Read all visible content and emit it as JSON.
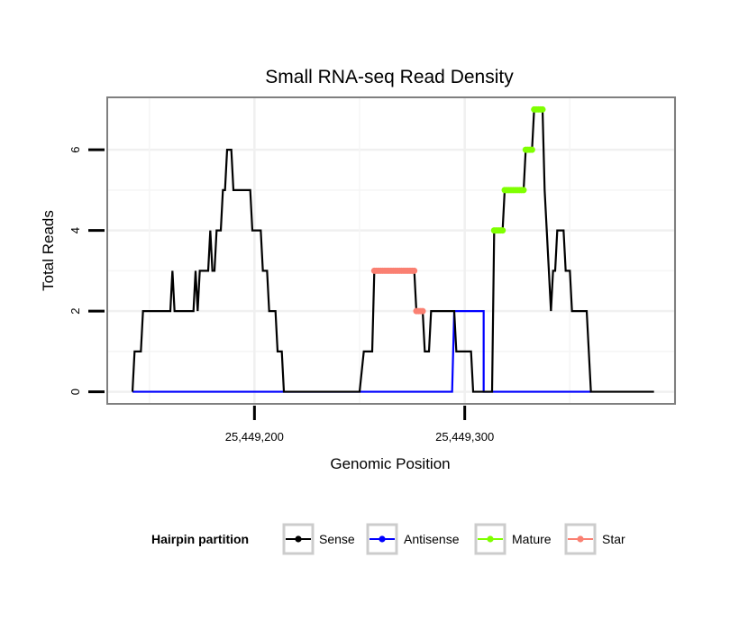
{
  "chart_data": {
    "type": "line",
    "title": "Small RNA-seq Read Density",
    "xlabel": "Genomic Position",
    "ylabel": "Total Reads",
    "xlim": [
      25449130,
      25449400
    ],
    "ylim": [
      -0.3,
      7.3
    ],
    "x_ticks": [
      {
        "value": 25449200,
        "label": "25,449,200"
      },
      {
        "value": 25449300,
        "label": "25,449,300"
      }
    ],
    "y_ticks": [
      {
        "value": 0,
        "label": "0"
      },
      {
        "value": 2,
        "label": "2"
      },
      {
        "value": 4,
        "label": "4"
      },
      {
        "value": 6,
        "label": "6"
      }
    ],
    "grid": true,
    "legend": {
      "title": "Hairpin partition",
      "position": "bottom",
      "entries": [
        {
          "name": "Sense",
          "color": "#000000"
        },
        {
          "name": "Antisense",
          "color": "#0000ff"
        },
        {
          "name": "Mature",
          "color": "#7fff00"
        },
        {
          "name": "Star",
          "color": "#fa8072"
        }
      ]
    },
    "series": [
      {
        "name": "Sense",
        "color": "#000000",
        "style": "line",
        "points": [
          [
            25449142,
            0
          ],
          [
            25449143,
            1
          ],
          [
            25449146,
            1
          ],
          [
            25449147,
            2
          ],
          [
            25449160,
            2
          ],
          [
            25449161,
            3
          ],
          [
            25449162,
            2
          ],
          [
            25449171,
            2
          ],
          [
            25449172,
            3
          ],
          [
            25449173,
            2
          ],
          [
            25449174,
            3
          ],
          [
            25449178,
            3
          ],
          [
            25449179,
            4
          ],
          [
            25449180,
            3
          ],
          [
            25449181,
            3
          ],
          [
            25449182,
            4
          ],
          [
            25449184,
            4
          ],
          [
            25449185,
            5
          ],
          [
            25449186,
            5
          ],
          [
            25449187,
            6
          ],
          [
            25449189,
            6
          ],
          [
            25449190,
            5
          ],
          [
            25449198,
            5
          ],
          [
            25449199,
            4
          ],
          [
            25449203,
            4
          ],
          [
            25449204,
            3
          ],
          [
            25449206,
            3
          ],
          [
            25449207,
            2
          ],
          [
            25449210,
            2
          ],
          [
            25449211,
            1
          ],
          [
            25449213,
            1
          ],
          [
            25449214,
            0
          ],
          [
            25449250,
            0
          ],
          [
            25449252,
            1
          ],
          [
            25449256,
            1
          ],
          [
            25449257,
            3
          ],
          [
            25449276,
            3
          ],
          [
            25449277,
            2
          ],
          [
            25449280,
            2
          ],
          [
            25449281,
            1
          ],
          [
            25449283,
            1
          ],
          [
            25449284,
            2
          ],
          [
            25449295,
            2
          ],
          [
            25449296,
            1
          ],
          [
            25449303,
            1
          ],
          [
            25449304,
            0
          ],
          [
            25449313,
            0
          ],
          [
            25449314,
            4
          ],
          [
            25449318,
            4
          ],
          [
            25449319,
            5
          ],
          [
            25449328,
            5
          ],
          [
            25449329,
            6
          ],
          [
            25449332,
            6
          ],
          [
            25449333,
            7
          ],
          [
            25449337,
            7
          ],
          [
            25449338,
            5
          ],
          [
            25449339,
            4
          ],
          [
            25449341,
            2
          ],
          [
            25449342,
            3
          ],
          [
            25449343,
            3
          ],
          [
            25449344,
            4
          ],
          [
            25449347,
            4
          ],
          [
            25449348,
            3
          ],
          [
            25449350,
            3
          ],
          [
            25449351,
            2
          ],
          [
            25449358,
            2
          ],
          [
            25449359,
            1
          ],
          [
            25449360,
            0
          ],
          [
            25449390,
            0
          ]
        ]
      },
      {
        "name": "Antisense",
        "color": "#0000ff",
        "style": "line",
        "points": [
          [
            25449142,
            0
          ],
          [
            25449294,
            0
          ],
          [
            25449295,
            2
          ],
          [
            25449309,
            2
          ],
          [
            25449309,
            0
          ],
          [
            25449360,
            0
          ]
        ]
      },
      {
        "name": "Mature",
        "color": "#7fff00",
        "style": "points",
        "points": [
          [
            25449314,
            4
          ],
          [
            25449315,
            4
          ],
          [
            25449316,
            4
          ],
          [
            25449317,
            4
          ],
          [
            25449318,
            4
          ],
          [
            25449319,
            5
          ],
          [
            25449320,
            5
          ],
          [
            25449321,
            5
          ],
          [
            25449322,
            5
          ],
          [
            25449323,
            5
          ],
          [
            25449324,
            5
          ],
          [
            25449325,
            5
          ],
          [
            25449326,
            5
          ],
          [
            25449327,
            5
          ],
          [
            25449328,
            5
          ],
          [
            25449329,
            6
          ],
          [
            25449330,
            6
          ],
          [
            25449331,
            6
          ],
          [
            25449332,
            6
          ],
          [
            25449333,
            7
          ],
          [
            25449334,
            7
          ],
          [
            25449335,
            7
          ],
          [
            25449336,
            7
          ],
          [
            25449337,
            7
          ]
        ]
      },
      {
        "name": "Star",
        "color": "#fa8072",
        "style": "points",
        "points": [
          [
            25449257,
            3
          ],
          [
            25449258,
            3
          ],
          [
            25449259,
            3
          ],
          [
            25449260,
            3
          ],
          [
            25449261,
            3
          ],
          [
            25449262,
            3
          ],
          [
            25449263,
            3
          ],
          [
            25449264,
            3
          ],
          [
            25449265,
            3
          ],
          [
            25449266,
            3
          ],
          [
            25449267,
            3
          ],
          [
            25449268,
            3
          ],
          [
            25449269,
            3
          ],
          [
            25449270,
            3
          ],
          [
            25449271,
            3
          ],
          [
            25449272,
            3
          ],
          [
            25449273,
            3
          ],
          [
            25449274,
            3
          ],
          [
            25449275,
            3
          ],
          [
            25449276,
            3
          ],
          [
            25449277,
            2
          ],
          [
            25449278,
            2
          ],
          [
            25449279,
            2
          ],
          [
            25449280,
            2
          ]
        ]
      }
    ]
  }
}
